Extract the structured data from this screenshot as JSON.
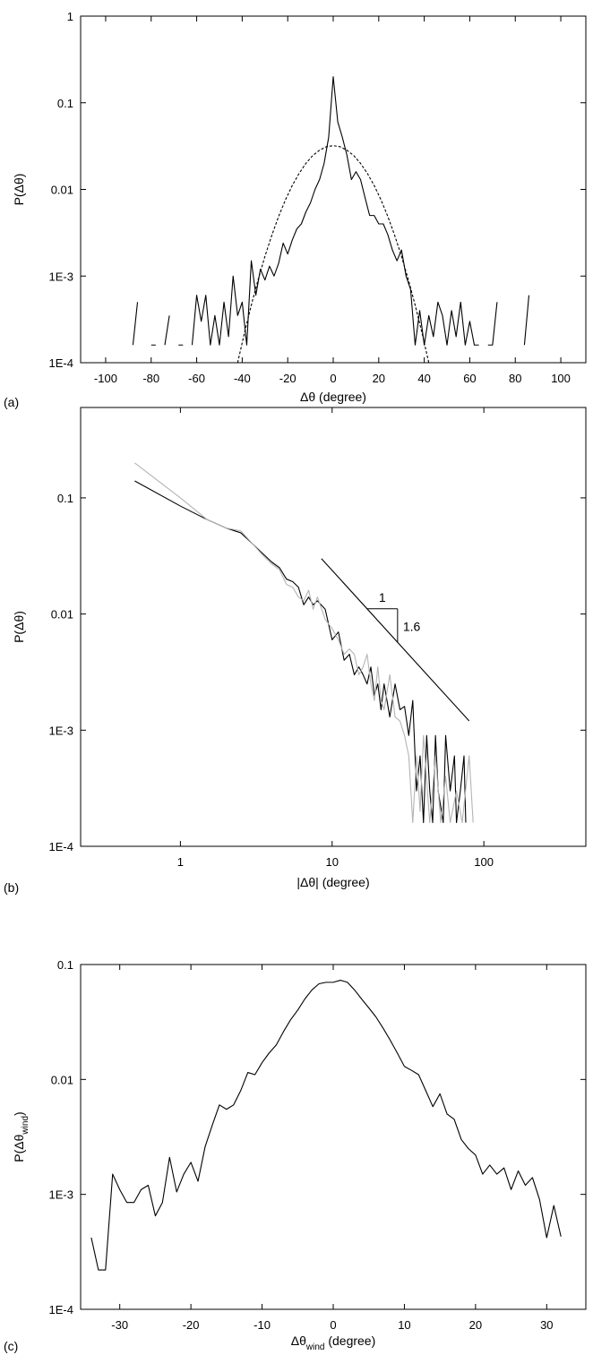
{
  "chart_data": [
    {
      "type": "line",
      "panel_label": "(a)",
      "xlabel": "Δθ  (degree)",
      "ylabel": "P(Δθ)",
      "xlim": [
        -111,
        111
      ],
      "xticks": [
        -100,
        -80,
        -60,
        -40,
        -20,
        0,
        20,
        40,
        60,
        80,
        100
      ],
      "ylim": [
        0.0001,
        1
      ],
      "yscale": "log",
      "yticks": [
        {
          "value": 0.0001,
          "label": "1E-4"
        },
        {
          "value": 0.001,
          "label": "1E-3"
        },
        0.01,
        0.1,
        1
      ],
      "series": [
        {
          "color": "#000000",
          "x": [
            -88,
            -86,
            -84,
            -82,
            -80,
            -78,
            -76,
            -74,
            -72,
            -70,
            -68,
            -66,
            -64,
            -62,
            -60,
            -58,
            -56,
            -54,
            -52,
            -50,
            -48,
            -46,
            -44,
            -42,
            -40,
            -38,
            -36,
            -34,
            -32,
            -30,
            -28,
            -26,
            -24,
            -22,
            -20,
            -18,
            -16,
            -14,
            -12,
            -10,
            -8,
            -6,
            -4,
            -2,
            0,
            2,
            4,
            6,
            8,
            10,
            12,
            14,
            16,
            18,
            20,
            22,
            24,
            26,
            28,
            30,
            32,
            34,
            36,
            38,
            40,
            42,
            44,
            46,
            48,
            50,
            52,
            54,
            56,
            58,
            60,
            62,
            64,
            66,
            68,
            70,
            72,
            74,
            76,
            78,
            80,
            82,
            84,
            86
          ],
          "values": [
            0.00016,
            0.0005,
            null,
            null,
            0.00016,
            0.00016,
            null,
            0.00016,
            0.00035,
            null,
            0.00016,
            0.00016,
            null,
            0.00016,
            0.0006,
            0.0003,
            0.0006,
            0.00016,
            0.00035,
            0.00016,
            0.0005,
            0.0002,
            0.001,
            0.00035,
            0.0005,
            0.00016,
            0.0015,
            0.0006,
            0.0012,
            0.0009,
            0.0013,
            0.001,
            0.0014,
            0.0024,
            0.0018,
            0.0026,
            0.0035,
            0.004,
            0.0055,
            0.007,
            0.01,
            0.013,
            0.02,
            0.04,
            0.2,
            0.06,
            0.04,
            0.025,
            0.013,
            0.016,
            0.013,
            0.008,
            0.005,
            0.005,
            0.004,
            0.004,
            0.003,
            0.002,
            0.0015,
            0.002,
            0.001,
            0.0007,
            0.00016,
            0.0004,
            0.00016,
            0.00035,
            0.0002,
            0.0005,
            0.00035,
            0.00016,
            0.0004,
            0.0002,
            0.0005,
            0.00016,
            0.0003,
            0.00016,
            0.00016,
            null,
            0.00016,
            0.00016,
            0.0005,
            null,
            null,
            null,
            null,
            null,
            0.00016,
            0.0006
          ]
        },
        {
          "color": "#000000",
          "dash": true,
          "x": [
            -42,
            -39,
            -36,
            -33,
            -30,
            -27,
            -24,
            -21,
            -18,
            -15,
            -12,
            -9,
            -6,
            -3,
            0,
            3,
            6,
            9,
            12,
            15,
            18,
            21,
            24,
            27,
            30,
            33,
            36,
            39,
            42
          ],
          "values": [
            0.0001,
            0.000221,
            0.000462,
            0.000909,
            0.00169,
            0.00295,
            0.00487,
            0.00757,
            0.0111,
            0.0153,
            0.02,
            0.0246,
            0.0284,
            0.0311,
            0.032,
            0.0311,
            0.0284,
            0.0246,
            0.02,
            0.0153,
            0.0111,
            0.00757,
            0.00487,
            0.00295,
            0.00169,
            0.000909,
            0.000462,
            0.000221,
            0.0001
          ]
        }
      ]
    },
    {
      "type": "line",
      "panel_label": "(b)",
      "xlabel": "|Δθ| (degree)",
      "ylabel": "P(Δθ)",
      "xlim": [
        0.22,
        470
      ],
      "xscale": "log",
      "xticks": [
        1,
        10,
        100
      ],
      "ylim": [
        0.0001,
        0.6
      ],
      "yscale": "log",
      "yticks": [
        {
          "value": 0.0001,
          "label": "1E-4"
        },
        {
          "value": 0.001,
          "label": "1E-3"
        },
        0.01,
        0.1
      ],
      "annotations": [
        "1",
        "1.6"
      ],
      "series": [
        {
          "color": "#000000",
          "x": [
            0.5,
            1,
            1.5,
            2,
            2.5,
            3,
            3.5,
            4,
            4.5,
            5,
            5.5,
            6,
            6.5,
            7,
            7.5,
            8,
            9,
            10,
            11,
            12,
            13,
            14,
            15,
            16,
            17,
            18,
            19,
            20,
            21,
            22,
            24,
            26,
            28,
            30,
            32,
            34,
            36,
            38,
            40,
            42,
            44,
            46,
            48,
            50,
            54,
            56,
            60,
            64,
            66,
            70,
            74,
            76
          ],
          "values": [
            0.14,
            0.085,
            0.065,
            0.055,
            0.05,
            0.04,
            0.033,
            0.028,
            0.025,
            0.02,
            0.019,
            0.017,
            0.012,
            0.014,
            0.012,
            0.013,
            0.011,
            0.006,
            0.007,
            0.004,
            0.0045,
            0.003,
            0.0035,
            0.003,
            0.0025,
            0.0035,
            0.002,
            0.0025,
            0.0015,
            0.0025,
            0.0013,
            0.0025,
            0.0015,
            0.0016,
            0.0009,
            0.0018,
            0.0003,
            0.0006,
            0.00016,
            0.0009,
            0.0003,
            0.00016,
            0.0009,
            0.0003,
            0.00016,
            0.0009,
            0.0003,
            0.0006,
            0.00016,
            0.0003,
            0.0006,
            0.00016
          ]
        },
        {
          "color": "#b4b4b4",
          "x": [
            0.5,
            1,
            1.5,
            2,
            2.5,
            3,
            3.5,
            4,
            4.5,
            5,
            5.5,
            6,
            6.5,
            7,
            7.5,
            8,
            9,
            10,
            11,
            12,
            13,
            14,
            15,
            16,
            17,
            18,
            19,
            20,
            21,
            22,
            24,
            26,
            28,
            30,
            32,
            34,
            36,
            38,
            40,
            44,
            48,
            52,
            56,
            60,
            66,
            72,
            80,
            85
          ],
          "values": [
            0.2,
            0.1,
            0.065,
            0.055,
            0.052,
            0.04,
            0.032,
            0.027,
            0.024,
            0.018,
            0.017,
            0.014,
            0.013,
            0.016,
            0.011,
            0.014,
            0.009,
            0.0075,
            0.006,
            0.0045,
            0.005,
            0.0045,
            0.003,
            0.0035,
            0.0045,
            0.0025,
            0.0018,
            0.0035,
            0.0018,
            0.0015,
            0.003,
            0.0013,
            0.0012,
            0.0009,
            0.0006,
            0.00016,
            0.0006,
            0.0002,
            0.0009,
            0.00016,
            0.0006,
            0.00016,
            0.0004,
            0.00016,
            0.0003,
            0.00016,
            0.0006,
            0.00016
          ]
        },
        {
          "color": "#000000",
          "x": [
            8.5,
            80
          ],
          "values": [
            0.03,
            0.0012
          ]
        }
      ]
    },
    {
      "type": "line",
      "panel_label": "(c)",
      "xlabel": [
        "Δθ",
        "wind",
        " (degree)"
      ],
      "ylabel": [
        "P(Δθ",
        "wind",
        ")"
      ],
      "xlim": [
        -35.5,
        35.5
      ],
      "xticks": [
        -30,
        -20,
        -10,
        0,
        10,
        20,
        30
      ],
      "ylim": [
        0.0001,
        0.1
      ],
      "yscale": "log",
      "yticks": [
        {
          "value": 0.0001,
          "label": "1E-4"
        },
        {
          "value": 0.001,
          "label": "1E-3"
        },
        0.01,
        0.1
      ],
      "series": [
        {
          "color": "#000000",
          "x": [
            -34,
            -33,
            -32,
            -31,
            -30,
            -29,
            -28,
            -27,
            -26,
            -25,
            -24,
            -23,
            -22,
            -21,
            -20,
            -19,
            -18,
            -17,
            -16,
            -15,
            -14,
            -13,
            -12,
            -11,
            -10,
            -9,
            -8,
            -7,
            -6,
            -5,
            -4,
            -3,
            -2,
            -1,
            0,
            1,
            2,
            3,
            4,
            5,
            6,
            7,
            8,
            9,
            10,
            11,
            12,
            13,
            14,
            15,
            16,
            17,
            18,
            19,
            20,
            21,
            22,
            23,
            24,
            25,
            26,
            27,
            28,
            29,
            30,
            31,
            32
          ],
          "values": [
            0.00042,
            0.00022,
            0.00022,
            0.0015,
            0.0011,
            0.00085,
            0.00085,
            0.0011,
            0.0012,
            0.00065,
            0.00085,
            0.0021,
            0.00105,
            0.0015,
            0.0019,
            0.0013,
            0.0026,
            0.004,
            0.006,
            0.0055,
            0.006,
            0.008,
            0.0115,
            0.011,
            0.014,
            0.017,
            0.02,
            0.026,
            0.033,
            0.04,
            0.05,
            0.06,
            0.068,
            0.07,
            0.07,
            0.073,
            0.07,
            0.06,
            0.05,
            0.042,
            0.035,
            0.028,
            0.022,
            0.017,
            0.013,
            0.012,
            0.011,
            0.008,
            0.0058,
            0.0075,
            0.005,
            0.0045,
            0.003,
            0.0025,
            0.0022,
            0.0015,
            0.0018,
            0.0015,
            0.0017,
            0.0011,
            0.0016,
            0.0012,
            0.0014,
            0.0009,
            0.00042,
            0.0008,
            0.00043
          ]
        }
      ]
    }
  ]
}
